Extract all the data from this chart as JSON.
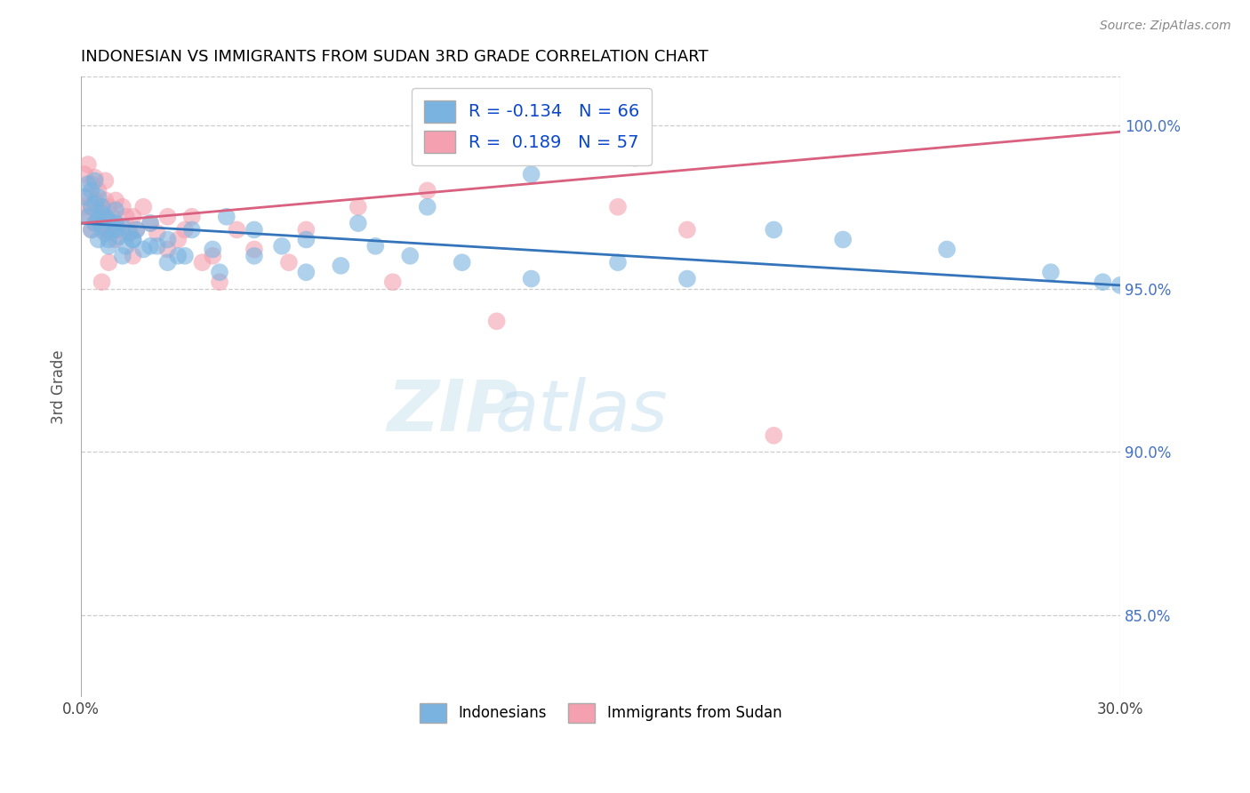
{
  "title": "INDONESIAN VS IMMIGRANTS FROM SUDAN 3RD GRADE CORRELATION CHART",
  "source_text": "Source: ZipAtlas.com",
  "ylabel": "3rd Grade",
  "watermark_zip": "ZIP",
  "watermark_atlas": "atlas",
  "xmin": 0.0,
  "xmax": 0.3,
  "ymin": 0.825,
  "ymax": 1.015,
  "yticks": [
    0.85,
    0.9,
    0.95,
    1.0
  ],
  "ytick_labels": [
    "85.0%",
    "90.0%",
    "95.0%",
    "100.0%"
  ],
  "xticks": [
    0.0,
    0.05,
    0.1,
    0.15,
    0.2,
    0.25,
    0.3
  ],
  "xtick_labels": [
    "0.0%",
    "",
    "",
    "",
    "",
    "",
    "30.0%"
  ],
  "blue_R": -0.134,
  "blue_N": 66,
  "pink_R": 0.189,
  "pink_N": 57,
  "blue_color": "#7ab3e0",
  "pink_color": "#f4a0b0",
  "blue_line_color": "#3474ba",
  "pink_line_color": "#d9607e",
  "legend_label_blue": "Indonesians",
  "legend_label_pink": "Immigrants from Sudan",
  "blue_line_x0": 0.0,
  "blue_line_y0": 0.97,
  "blue_line_x1": 0.3,
  "blue_line_y1": 0.951,
  "pink_line_x0": 0.0,
  "pink_line_y0": 0.97,
  "pink_line_x1": 0.3,
  "pink_line_y1": 0.998,
  "blue_points_x": [
    0.001,
    0.002,
    0.002,
    0.003,
    0.003,
    0.003,
    0.004,
    0.004,
    0.004,
    0.005,
    0.005,
    0.005,
    0.006,
    0.006,
    0.006,
    0.007,
    0.007,
    0.008,
    0.008,
    0.009,
    0.01,
    0.01,
    0.011,
    0.012,
    0.013,
    0.014,
    0.015,
    0.016,
    0.018,
    0.02,
    0.022,
    0.025,
    0.028,
    0.032,
    0.038,
    0.042,
    0.05,
    0.058,
    0.065,
    0.075,
    0.085,
    0.095,
    0.11,
    0.13,
    0.155,
    0.175,
    0.2,
    0.22,
    0.25,
    0.28,
    0.295,
    0.3,
    0.008,
    0.01,
    0.012,
    0.015,
    0.02,
    0.025,
    0.03,
    0.04,
    0.05,
    0.065,
    0.08,
    0.1,
    0.13,
    0.16
  ],
  "blue_points_y": [
    0.978,
    0.972,
    0.982,
    0.968,
    0.975,
    0.98,
    0.97,
    0.976,
    0.983,
    0.971,
    0.978,
    0.965,
    0.973,
    0.969,
    0.975,
    0.967,
    0.972,
    0.971,
    0.965,
    0.968,
    0.97,
    0.974,
    0.966,
    0.969,
    0.963,
    0.967,
    0.965,
    0.968,
    0.962,
    0.97,
    0.963,
    0.965,
    0.96,
    0.968,
    0.962,
    0.972,
    0.968,
    0.963,
    0.965,
    0.957,
    0.963,
    0.96,
    0.958,
    0.953,
    0.958,
    0.953,
    0.968,
    0.965,
    0.962,
    0.955,
    0.952,
    0.951,
    0.963,
    0.968,
    0.96,
    0.965,
    0.963,
    0.958,
    0.96,
    0.955,
    0.96,
    0.955,
    0.97,
    0.975,
    0.985,
    0.99
  ],
  "pink_points_x": [
    0.001,
    0.001,
    0.002,
    0.002,
    0.002,
    0.003,
    0.003,
    0.003,
    0.004,
    0.004,
    0.004,
    0.005,
    0.005,
    0.006,
    0.006,
    0.007,
    0.007,
    0.007,
    0.008,
    0.008,
    0.009,
    0.01,
    0.01,
    0.011,
    0.012,
    0.013,
    0.014,
    0.015,
    0.016,
    0.018,
    0.02,
    0.022,
    0.025,
    0.028,
    0.032,
    0.038,
    0.045,
    0.06,
    0.09,
    0.12,
    0.155,
    0.175,
    0.2,
    0.025,
    0.03,
    0.035,
    0.04,
    0.05,
    0.065,
    0.08,
    0.1,
    0.13,
    0.16,
    0.015,
    0.01,
    0.008,
    0.006
  ],
  "pink_points_y": [
    0.975,
    0.985,
    0.972,
    0.978,
    0.988,
    0.968,
    0.975,
    0.982,
    0.97,
    0.977,
    0.984,
    0.972,
    0.98,
    0.968,
    0.975,
    0.97,
    0.977,
    0.983,
    0.968,
    0.975,
    0.972,
    0.97,
    0.977,
    0.968,
    0.975,
    0.972,
    0.967,
    0.972,
    0.968,
    0.975,
    0.97,
    0.967,
    0.972,
    0.965,
    0.972,
    0.96,
    0.968,
    0.958,
    0.952,
    0.94,
    0.975,
    0.968,
    0.905,
    0.962,
    0.968,
    0.958,
    0.952,
    0.962,
    0.968,
    0.975,
    0.98,
    0.99,
    1.0,
    0.96,
    0.965,
    0.958,
    0.952
  ]
}
